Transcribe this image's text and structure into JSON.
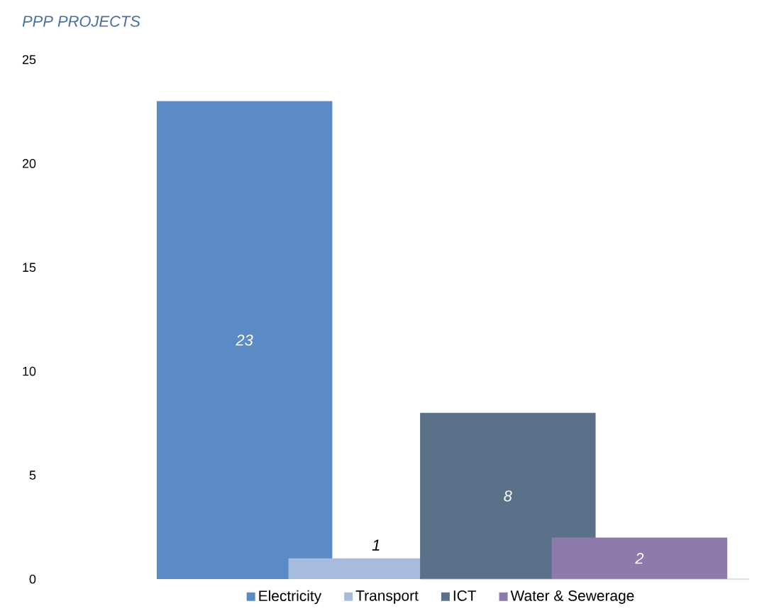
{
  "chart_data": {
    "type": "bar",
    "title": "PPP PROJECTS",
    "categories": [
      null
    ],
    "series": [
      {
        "name": "Electricity",
        "color": "#5b8bc4",
        "values": [
          23
        ]
      },
      {
        "name": "Transport",
        "color": "#a7bbdd",
        "values": [
          1
        ]
      },
      {
        "name": "ICT",
        "color": "#5b7189",
        "values": [
          8
        ]
      },
      {
        "name": "Water & Sewerage",
        "color": "#8e7aab",
        "values": [
          2
        ]
      }
    ],
    "ylim": [
      0,
      25
    ],
    "yticks": [
      0,
      5,
      10,
      15,
      20,
      25
    ],
    "data_labels": true,
    "legend": "bottom"
  }
}
